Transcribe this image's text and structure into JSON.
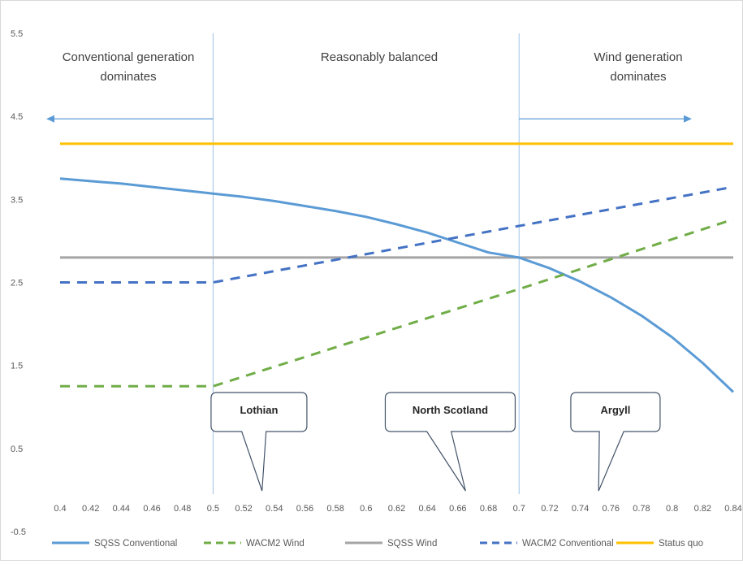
{
  "chart_data": {
    "type": "line",
    "title": "",
    "xlabel": "",
    "ylabel": "",
    "xlim": [
      0.4,
      0.84
    ],
    "ylim": [
      -0.5,
      5.5
    ],
    "x_ticks": [
      "0.4",
      "0.42",
      "0.44",
      "0.46",
      "0.48",
      "0.5",
      "0.52",
      "0.54",
      "0.56",
      "0.58",
      "0.6",
      "0.62",
      "0.64",
      "0.66",
      "0.68",
      "0.7",
      "0.72",
      "0.74",
      "0.76",
      "0.78",
      "0.8",
      "0.82",
      "0.84"
    ],
    "y_ticks": [
      "5.5",
      "4.5",
      "3.5",
      "2.5",
      "1.5",
      "0.5",
      "-0.5"
    ],
    "grid": false,
    "legend_position": "bottom",
    "series": [
      {
        "name": "SQSS Conventional",
        "color": "#5b9bd5",
        "dash": "solid",
        "x": [
          0.4,
          0.42,
          0.44,
          0.46,
          0.48,
          0.5,
          0.52,
          0.54,
          0.56,
          0.58,
          0.6,
          0.62,
          0.64,
          0.66,
          0.68,
          0.7,
          0.72,
          0.74,
          0.76,
          0.78,
          0.8,
          0.82,
          0.84
        ],
        "values": [
          3.75,
          3.72,
          3.69,
          3.65,
          3.61,
          3.57,
          3.53,
          3.48,
          3.42,
          3.36,
          3.29,
          3.2,
          3.1,
          2.98,
          2.86,
          2.8,
          2.67,
          2.51,
          2.32,
          2.1,
          1.84,
          1.53,
          1.18
        ]
      },
      {
        "name": "WACM2 Wind",
        "color": "#70ad47",
        "dash": "dashed",
        "x": [
          0.4,
          0.5,
          0.7,
          0.84
        ],
        "values": [
          1.25,
          1.25,
          2.42,
          3.26
        ]
      },
      {
        "name": "SQSS Wind",
        "color": "#a5a5a5",
        "dash": "solid",
        "x": [
          0.4,
          0.84
        ],
        "values": [
          2.8,
          2.8
        ]
      },
      {
        "name": "WACM2 Conventional",
        "color": "#4472c4",
        "dash": "dashed",
        "x": [
          0.4,
          0.5,
          0.7,
          0.84
        ],
        "values": [
          2.5,
          2.5,
          3.18,
          3.65
        ]
      },
      {
        "name": "Status quo",
        "color": "#ffc000",
        "dash": "solid",
        "x": [
          0.4,
          0.84
        ],
        "values": [
          4.17,
          4.17
        ]
      }
    ],
    "region_dividers": [
      0.5,
      0.7
    ],
    "regions": [
      {
        "line1": "Conventional generation",
        "line2": "dominates"
      },
      {
        "line1": "Reasonably balanced",
        "line2": ""
      },
      {
        "line1": "Wind generation",
        "line2": "dominates"
      }
    ],
    "arrows_y": 4.47,
    "callouts": [
      {
        "label": "Lothian",
        "x_center": 0.53,
        "pointer_x": 0.532
      },
      {
        "label": "North Scotland",
        "x_center": 0.655,
        "pointer_x": 0.665
      },
      {
        "label": "Argyll",
        "x_center": 0.763,
        "pointer_x": 0.752
      }
    ]
  }
}
